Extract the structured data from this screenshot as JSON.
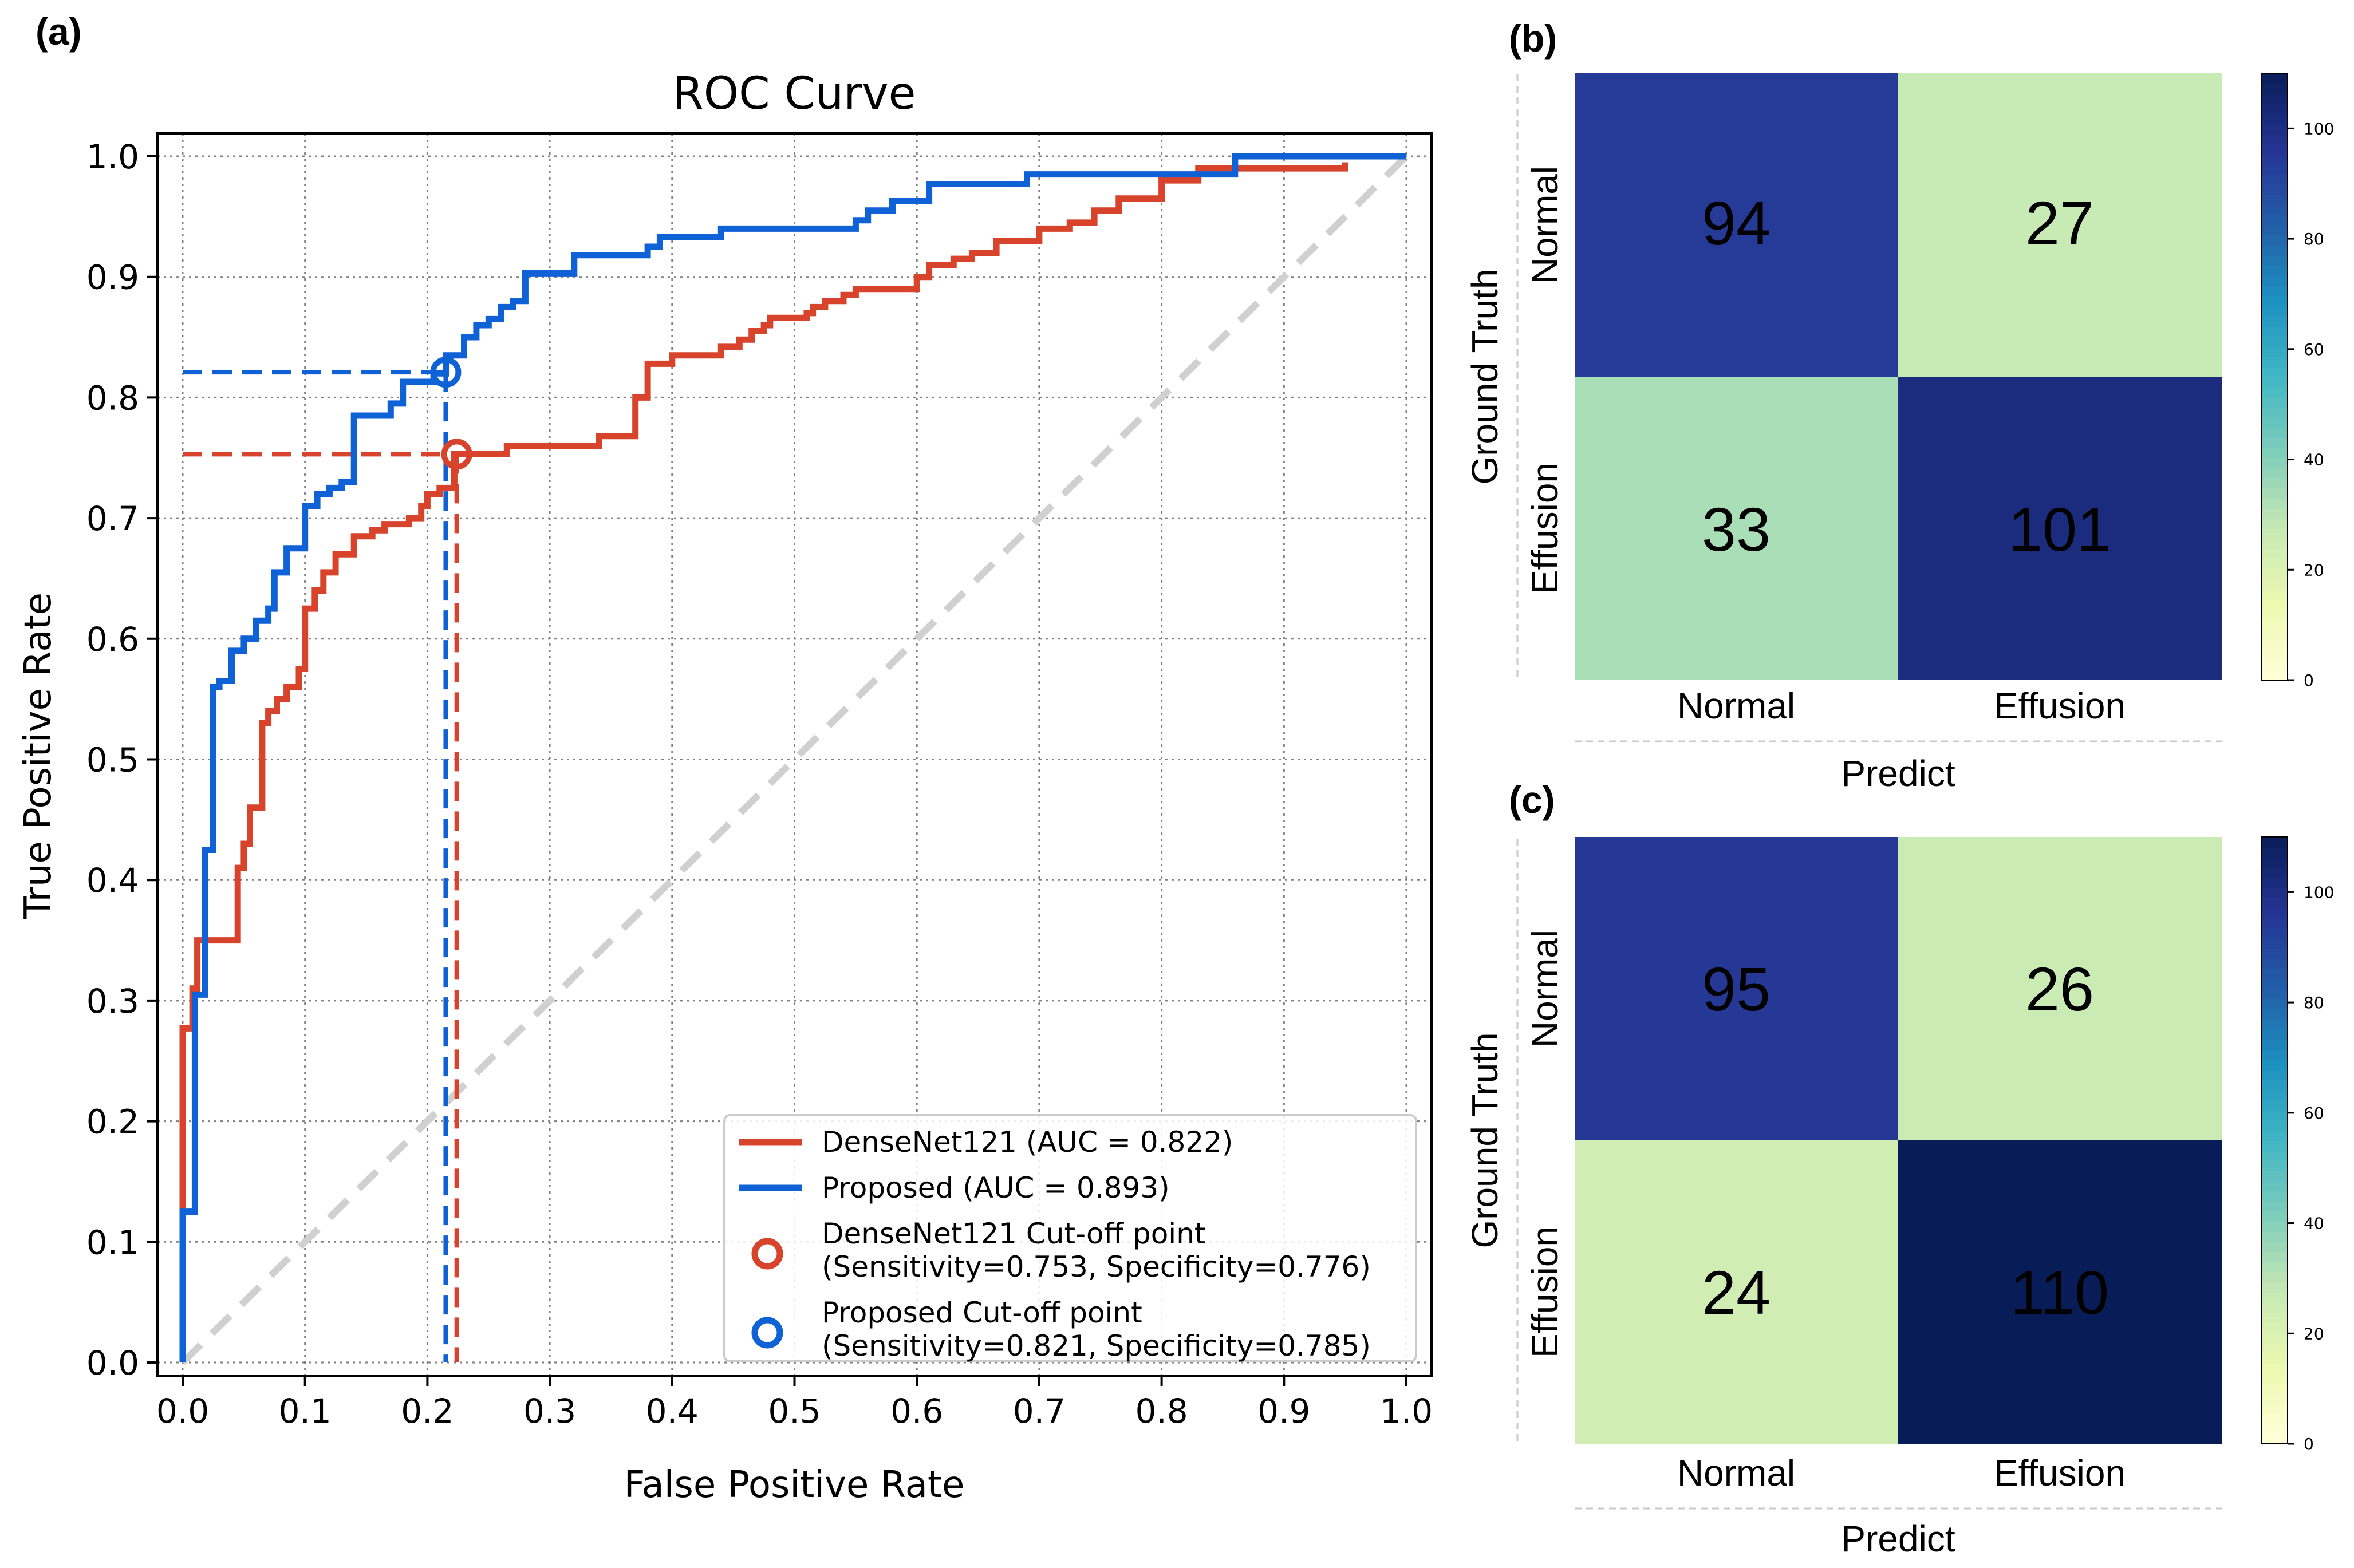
{
  "chart_data": [
    {
      "id": "a",
      "panel_label": "(a)",
      "type": "line",
      "title": "ROC Curve",
      "xlabel": "False Positive Rate",
      "ylabel": "True Positive Rate",
      "xlim": [
        0.0,
        1.0
      ],
      "ylim": [
        0.0,
        1.0
      ],
      "xticks": [
        "0.0",
        "0.1",
        "0.2",
        "0.3",
        "0.4",
        "0.5",
        "0.6",
        "0.7",
        "0.8",
        "0.9",
        "1.0"
      ],
      "yticks": [
        "0.0",
        "0.1",
        "0.2",
        "0.3",
        "0.4",
        "0.5",
        "0.6",
        "0.7",
        "0.8",
        "0.9",
        "1.0"
      ],
      "grid": true,
      "legend_position": "bottom-right",
      "colors": {
        "densenet": "#d8432c",
        "proposed": "#0f61d6",
        "diagonal": "#d0d0d0",
        "grid": "#808080"
      },
      "series": [
        {
          "name": "DenseNet121 (AUC = 0.822)",
          "key": "densenet",
          "points": [
            [
              0.0,
              0.0
            ],
            [
              0.0,
              0.13
            ],
            [
              0.0,
              0.277
            ],
            [
              0.008,
              0.277
            ],
            [
              0.008,
              0.31
            ],
            [
              0.012,
              0.31
            ],
            [
              0.012,
              0.35
            ],
            [
              0.045,
              0.35
            ],
            [
              0.045,
              0.41
            ],
            [
              0.05,
              0.41
            ],
            [
              0.05,
              0.43
            ],
            [
              0.055,
              0.43
            ],
            [
              0.055,
              0.46
            ],
            [
              0.065,
              0.46
            ],
            [
              0.065,
              0.53
            ],
            [
              0.07,
              0.53
            ],
            [
              0.07,
              0.54
            ],
            [
              0.077,
              0.54
            ],
            [
              0.077,
              0.55
            ],
            [
              0.085,
              0.55
            ],
            [
              0.085,
              0.56
            ],
            [
              0.095,
              0.56
            ],
            [
              0.095,
              0.575
            ],
            [
              0.1,
              0.575
            ],
            [
              0.1,
              0.625
            ],
            [
              0.108,
              0.625
            ],
            [
              0.108,
              0.64
            ],
            [
              0.115,
              0.64
            ],
            [
              0.115,
              0.655
            ],
            [
              0.125,
              0.655
            ],
            [
              0.125,
              0.67
            ],
            [
              0.14,
              0.67
            ],
            [
              0.14,
              0.685
            ],
            [
              0.155,
              0.685
            ],
            [
              0.155,
              0.69
            ],
            [
              0.165,
              0.69
            ],
            [
              0.165,
              0.695
            ],
            [
              0.185,
              0.695
            ],
            [
              0.185,
              0.7
            ],
            [
              0.195,
              0.7
            ],
            [
              0.195,
              0.71
            ],
            [
              0.2,
              0.71
            ],
            [
              0.2,
              0.72
            ],
            [
              0.21,
              0.72
            ],
            [
              0.21,
              0.725
            ],
            [
              0.222,
              0.725
            ],
            [
              0.222,
              0.753
            ],
            [
              0.265,
              0.753
            ],
            [
              0.265,
              0.76
            ],
            [
              0.34,
              0.76
            ],
            [
              0.34,
              0.768
            ],
            [
              0.37,
              0.768
            ],
            [
              0.37,
              0.8
            ],
            [
              0.38,
              0.8
            ],
            [
              0.38,
              0.828
            ],
            [
              0.4,
              0.828
            ],
            [
              0.4,
              0.835
            ],
            [
              0.44,
              0.835
            ],
            [
              0.44,
              0.842
            ],
            [
              0.455,
              0.842
            ],
            [
              0.455,
              0.848
            ],
            [
              0.465,
              0.848
            ],
            [
              0.465,
              0.855
            ],
            [
              0.475,
              0.855
            ],
            [
              0.475,
              0.86
            ],
            [
              0.48,
              0.86
            ],
            [
              0.48,
              0.866
            ],
            [
              0.51,
              0.866
            ],
            [
              0.51,
              0.87
            ],
            [
              0.515,
              0.87
            ],
            [
              0.515,
              0.875
            ],
            [
              0.525,
              0.875
            ],
            [
              0.525,
              0.88
            ],
            [
              0.54,
              0.88
            ],
            [
              0.54,
              0.885
            ],
            [
              0.55,
              0.885
            ],
            [
              0.55,
              0.89
            ],
            [
              0.6,
              0.89
            ],
            [
              0.6,
              0.9
            ],
            [
              0.61,
              0.9
            ],
            [
              0.61,
              0.91
            ],
            [
              0.63,
              0.91
            ],
            [
              0.63,
              0.915
            ],
            [
              0.645,
              0.915
            ],
            [
              0.645,
              0.92
            ],
            [
              0.665,
              0.92
            ],
            [
              0.665,
              0.93
            ],
            [
              0.7,
              0.93
            ],
            [
              0.7,
              0.94
            ],
            [
              0.725,
              0.94
            ],
            [
              0.725,
              0.945
            ],
            [
              0.745,
              0.945
            ],
            [
              0.745,
              0.955
            ],
            [
              0.765,
              0.955
            ],
            [
              0.765,
              0.965
            ],
            [
              0.8,
              0.965
            ],
            [
              0.8,
              0.98
            ],
            [
              0.83,
              0.98
            ],
            [
              0.83,
              0.99
            ],
            [
              0.95,
              0.99
            ],
            [
              0.95,
              0.995
            ]
          ]
        },
        {
          "name": "Proposed (AUC = 0.893)",
          "key": "proposed",
          "points": [
            [
              0.0,
              0.0
            ],
            [
              0.0,
              0.125
            ],
            [
              0.01,
              0.125
            ],
            [
              0.01,
              0.305
            ],
            [
              0.018,
              0.305
            ],
            [
              0.018,
              0.425
            ],
            [
              0.025,
              0.425
            ],
            [
              0.025,
              0.56
            ],
            [
              0.03,
              0.56
            ],
            [
              0.03,
              0.565
            ],
            [
              0.04,
              0.565
            ],
            [
              0.04,
              0.59
            ],
            [
              0.05,
              0.59
            ],
            [
              0.05,
              0.6
            ],
            [
              0.06,
              0.6
            ],
            [
              0.06,
              0.615
            ],
            [
              0.07,
              0.615
            ],
            [
              0.07,
              0.625
            ],
            [
              0.075,
              0.625
            ],
            [
              0.075,
              0.655
            ],
            [
              0.085,
              0.655
            ],
            [
              0.085,
              0.675
            ],
            [
              0.1,
              0.675
            ],
            [
              0.1,
              0.71
            ],
            [
              0.11,
              0.71
            ],
            [
              0.11,
              0.72
            ],
            [
              0.12,
              0.72
            ],
            [
              0.12,
              0.725
            ],
            [
              0.13,
              0.725
            ],
            [
              0.13,
              0.73
            ],
            [
              0.14,
              0.73
            ],
            [
              0.14,
              0.76
            ],
            [
              0.14,
              0.76
            ],
            [
              0.14,
              0.785
            ],
            [
              0.17,
              0.785
            ],
            [
              0.17,
              0.795
            ],
            [
              0.18,
              0.795
            ],
            [
              0.18,
              0.813
            ],
            [
              0.205,
              0.813
            ],
            [
              0.205,
              0.82
            ],
            [
              0.215,
              0.82
            ],
            [
              0.215,
              0.835
            ],
            [
              0.23,
              0.835
            ],
            [
              0.23,
              0.85
            ],
            [
              0.24,
              0.85
            ],
            [
              0.24,
              0.86
            ],
            [
              0.25,
              0.86
            ],
            [
              0.25,
              0.865
            ],
            [
              0.26,
              0.865
            ],
            [
              0.26,
              0.875
            ],
            [
              0.27,
              0.875
            ],
            [
              0.27,
              0.88
            ],
            [
              0.28,
              0.88
            ],
            [
              0.28,
              0.903
            ],
            [
              0.32,
              0.903
            ],
            [
              0.32,
              0.918
            ],
            [
              0.38,
              0.918
            ],
            [
              0.38,
              0.925
            ],
            [
              0.39,
              0.925
            ],
            [
              0.39,
              0.933
            ],
            [
              0.44,
              0.933
            ],
            [
              0.44,
              0.94
            ],
            [
              0.55,
              0.94
            ],
            [
              0.55,
              0.947
            ],
            [
              0.56,
              0.947
            ],
            [
              0.56,
              0.955
            ],
            [
              0.58,
              0.955
            ],
            [
              0.58,
              0.963
            ],
            [
              0.61,
              0.963
            ],
            [
              0.61,
              0.977
            ],
            [
              0.69,
              0.977
            ],
            [
              0.69,
              0.985
            ],
            [
              0.86,
              0.985
            ],
            [
              0.86,
              1.0
            ],
            [
              1.0,
              1.0
            ]
          ]
        }
      ],
      "diagonal": {
        "name": "chance",
        "points": [
          [
            0.0,
            0.0
          ],
          [
            1.0,
            1.0
          ]
        ]
      },
      "cutoff_points": [
        {
          "key": "densenet",
          "fpr": 0.224,
          "tpr": 0.753,
          "label1": "DenseNet121 Cut-off point",
          "label2": "(Sensitivity=0.753, Specificity=0.776)"
        },
        {
          "key": "proposed",
          "fpr": 0.215,
          "tpr": 0.821,
          "label1": "Proposed Cut-off point",
          "label2": "(Sensitivity=0.821, Specificity=0.785)"
        }
      ]
    },
    {
      "id": "b",
      "panel_label": "(b)",
      "type": "heatmap",
      "xlabel": "Predict",
      "ylabel": "Ground Truth",
      "x_categories": [
        "Normal",
        "Effusion"
      ],
      "y_categories": [
        "Normal",
        "Effusion"
      ],
      "values": [
        [
          94,
          27
        ],
        [
          33,
          101
        ]
      ],
      "cell_labels": [
        [
          "94",
          "27"
        ],
        [
          "33",
          "101"
        ]
      ],
      "colormap": "YlGnBu",
      "colorbar_range": [
        0,
        110
      ],
      "colorbar_ticks": [
        "0",
        "20",
        "40",
        "60",
        "80",
        "100"
      ]
    },
    {
      "id": "c",
      "panel_label": "(c)",
      "type": "heatmap",
      "xlabel": "Predict",
      "ylabel": "Ground Truth",
      "x_categories": [
        "Normal",
        "Effusion"
      ],
      "y_categories": [
        "Normal",
        "Effusion"
      ],
      "values": [
        [
          95,
          26
        ],
        [
          24,
          110
        ]
      ],
      "cell_labels": [
        [
          "95",
          "26"
        ],
        [
          "24",
          "110"
        ]
      ],
      "colormap": "YlGnBu",
      "colorbar_range": [
        0,
        110
      ],
      "colorbar_ticks": [
        "0",
        "20",
        "40",
        "60",
        "80",
        "100"
      ]
    }
  ]
}
